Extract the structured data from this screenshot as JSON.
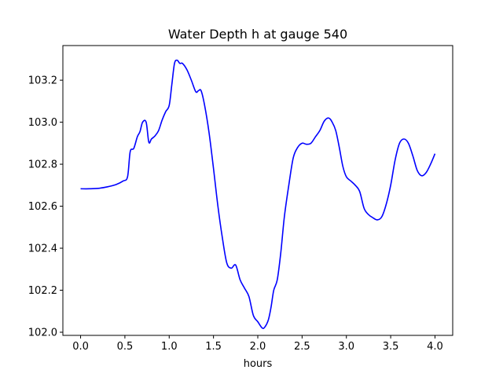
{
  "chart_data": {
    "type": "line",
    "title": "Water Depth h at gauge 540",
    "xlabel": "hours",
    "ylabel": "",
    "xlim": [
      -0.2,
      4.2
    ],
    "ylim": [
      101.985,
      103.365
    ],
    "xticks": [
      0.0,
      0.5,
      1.0,
      1.5,
      2.0,
      2.5,
      3.0,
      3.5,
      4.0
    ],
    "xtick_labels": [
      "0.0",
      "0.5",
      "1.0",
      "1.5",
      "2.0",
      "2.5",
      "3.0",
      "3.5",
      "4.0"
    ],
    "yticks": [
      102.0,
      102.2,
      102.4,
      102.6,
      102.8,
      103.0,
      103.2
    ],
    "ytick_labels": [
      "102.0",
      "102.2",
      "102.4",
      "102.6",
      "102.8",
      "103.0",
      "103.2"
    ],
    "grid": false,
    "series": [
      {
        "color": "#0000ff",
        "x": [
          0.0,
          0.1,
          0.2,
          0.3,
          0.4,
          0.48,
          0.53,
          0.56,
          0.6,
          0.64,
          0.67,
          0.7,
          0.74,
          0.77,
          0.8,
          0.84,
          0.88,
          0.92,
          0.96,
          1.0,
          1.03,
          1.06,
          1.09,
          1.12,
          1.15,
          1.2,
          1.25,
          1.3,
          1.33,
          1.36,
          1.4,
          1.45,
          1.5,
          1.55,
          1.6,
          1.65,
          1.7,
          1.75,
          1.8,
          1.85,
          1.9,
          1.95,
          2.0,
          2.05,
          2.08,
          2.12,
          2.15,
          2.18,
          2.22,
          2.26,
          2.3,
          2.35,
          2.4,
          2.45,
          2.5,
          2.55,
          2.6,
          2.65,
          2.7,
          2.75,
          2.8,
          2.84,
          2.88,
          2.92,
          2.96,
          3.0,
          3.05,
          3.1,
          3.15,
          3.2,
          3.25,
          3.3,
          3.35,
          3.4,
          3.45,
          3.5,
          3.55,
          3.6,
          3.65,
          3.7,
          3.75,
          3.8,
          3.85,
          3.9,
          3.95,
          4.0
        ],
        "y": [
          102.683,
          102.683,
          102.685,
          102.692,
          102.703,
          102.72,
          102.74,
          102.86,
          102.875,
          102.93,
          102.955,
          103.0,
          103.0,
          102.905,
          102.92,
          102.935,
          102.96,
          103.01,
          103.05,
          103.08,
          103.18,
          103.28,
          103.295,
          103.28,
          103.28,
          103.25,
          103.2,
          103.145,
          103.15,
          103.15,
          103.08,
          102.95,
          102.78,
          102.6,
          102.45,
          102.33,
          102.305,
          102.32,
          102.25,
          102.21,
          102.17,
          102.08,
          102.05,
          102.02,
          102.025,
          102.06,
          102.12,
          102.2,
          102.25,
          102.38,
          102.55,
          102.7,
          102.83,
          102.88,
          102.9,
          102.895,
          102.9,
          102.93,
          102.96,
          103.005,
          103.02,
          103.0,
          102.96,
          102.88,
          102.79,
          102.74,
          102.72,
          102.7,
          102.67,
          102.59,
          102.56,
          102.545,
          102.535,
          102.55,
          102.61,
          102.7,
          102.82,
          102.9,
          102.92,
          102.9,
          102.84,
          102.77,
          102.745,
          102.76,
          102.8,
          102.85
        ]
      }
    ]
  }
}
